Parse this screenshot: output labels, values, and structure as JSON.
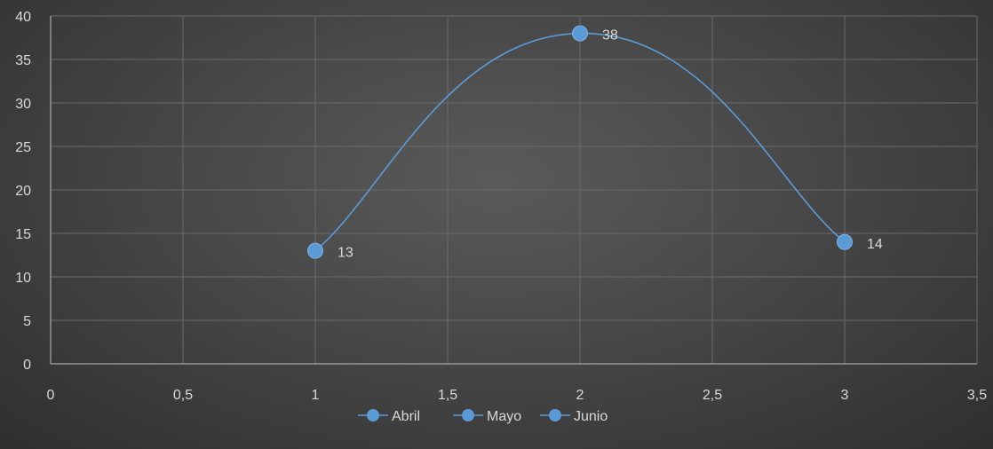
{
  "chart_data": {
    "type": "scatter",
    "title": "",
    "xlabel": "",
    "ylabel": "",
    "xlim": [
      0,
      3.5
    ],
    "ylim": [
      0,
      40
    ],
    "x_ticks": [
      "0",
      "0,5",
      "1",
      "1,5",
      "2",
      "2,5",
      "3",
      "3,5"
    ],
    "y_ticks": [
      "0",
      "5",
      "10",
      "15",
      "20",
      "25",
      "30",
      "35",
      "40"
    ],
    "grid": true,
    "smooth": true,
    "series": [
      {
        "points": [
          {
            "x": 1,
            "y": 13,
            "label": "13"
          },
          {
            "x": 2,
            "y": 38,
            "label": "38"
          },
          {
            "x": 3,
            "y": 14,
            "label": "14"
          }
        ]
      }
    ],
    "legend": {
      "position": "bottom",
      "entries": [
        "Abril",
        "Mayo",
        "Junio"
      ]
    },
    "colors": {
      "series": "#5b9bd5",
      "grid": "#6a6a6a",
      "axis": "#bfbfbf",
      "text": "#d9d9d9"
    }
  }
}
